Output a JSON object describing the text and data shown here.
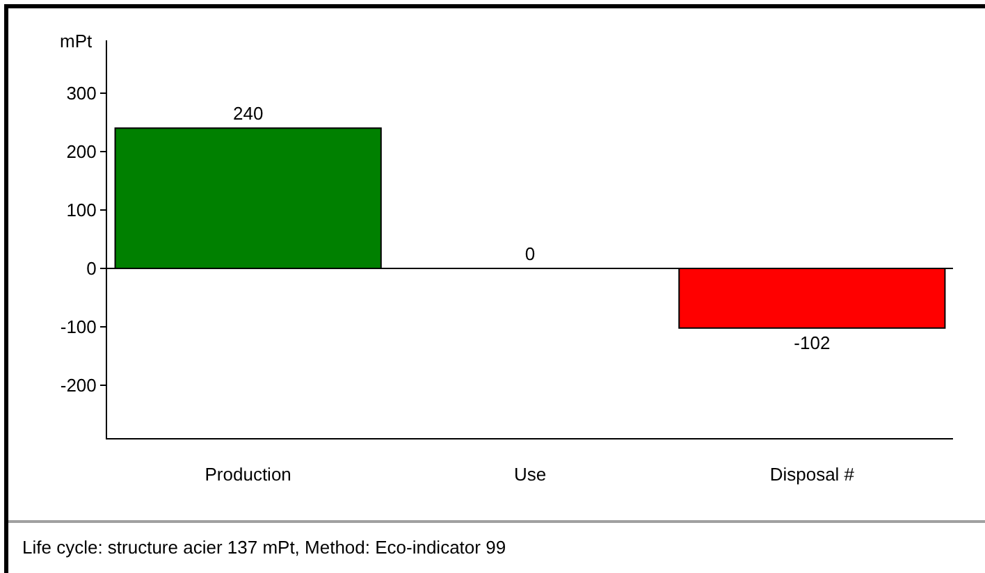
{
  "chart_data": {
    "type": "bar",
    "categories": [
      "Production",
      "Use",
      "Disposal #"
    ],
    "values": [
      240,
      0,
      -102
    ],
    "colors": [
      "#008000",
      "#000000",
      "#ff0000"
    ],
    "ylabel": "mPt",
    "ylim": [
      -290,
      390
    ],
    "yticks": [
      -200,
      -100,
      0,
      100,
      200,
      300
    ],
    "data_labels": true,
    "annotations": [
      "Life cycle: structure acier 137 mPt, Method: Eco-indicator 99"
    ]
  }
}
